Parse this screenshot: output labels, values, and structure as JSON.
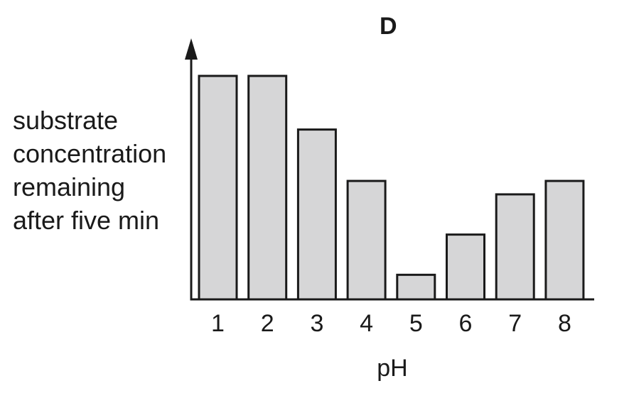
{
  "chart_data": {
    "type": "bar",
    "title": "D",
    "xlabel": "pH",
    "ylabel_lines": [
      "substrate",
      "concentration",
      "remaining",
      "after five min"
    ],
    "categories": [
      "1",
      "2",
      "3",
      "4",
      "5",
      "6",
      "7",
      "8"
    ],
    "values": [
      100,
      100,
      76,
      53,
      11,
      29,
      47,
      53
    ],
    "ylim": [
      0,
      100
    ],
    "grid": false,
    "y_ticks": false
  },
  "colors": {
    "bar_fill": "#d6d6d7",
    "bar_stroke": "#1a1a1a",
    "axis": "#1a1a1a"
  }
}
